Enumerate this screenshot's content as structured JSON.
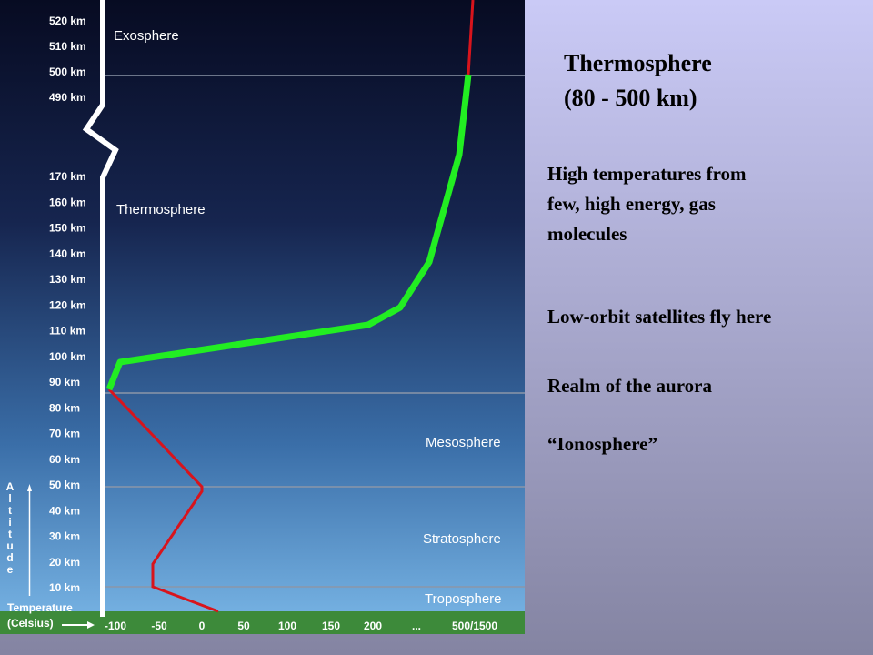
{
  "diagram": {
    "altitude_labels": [
      "520 km",
      "510 km",
      "500 km",
      "490 km",
      "170 km",
      "160 km",
      "150 km",
      "140 km",
      "130 km",
      "120 km",
      "110 km",
      "100 km",
      "90 km",
      "80 km",
      "70 km",
      "60 km",
      "50 km",
      "40 km",
      "30 km",
      "20 km",
      "10 km"
    ],
    "layers": [
      "Exosphere",
      "Thermosphere",
      "Mesosphere",
      "Stratosphere",
      "Troposphere"
    ],
    "axis_title": "Altitude",
    "temperature_label": [
      "Temperature",
      "(Celsius)"
    ],
    "temperature_ticks": [
      "-100",
      "-50",
      "0",
      "50",
      "100",
      "150",
      "200",
      "...",
      "500/1500"
    ]
  },
  "slide": {
    "title": [
      "Thermosphere",
      "(80 - 500 km)"
    ],
    "points": [
      [
        "High temperatures from",
        "few, high energy, gas",
        "molecules"
      ],
      [
        "Low-orbit satellites fly here"
      ],
      [
        "Realm of the aurora"
      ],
      [
        "“Ionosphere”"
      ]
    ]
  }
}
